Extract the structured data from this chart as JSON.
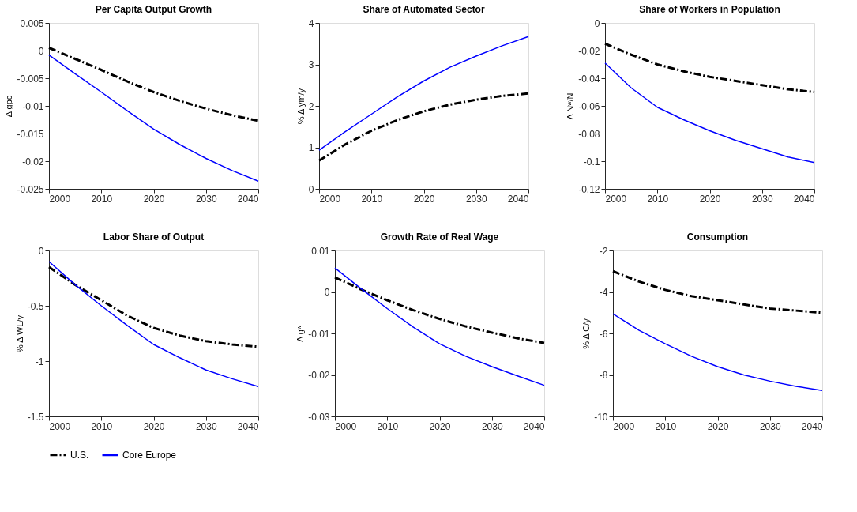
{
  "chart_data": [
    {
      "type": "line",
      "title": "Per Capita Output Growth",
      "ylabel": "Δ gpc",
      "x": [
        2000,
        2005,
        2010,
        2015,
        2020,
        2025,
        2030,
        2035,
        2040
      ],
      "xlim": [
        2000,
        2040
      ],
      "xticks": [
        2000,
        2010,
        2020,
        2030,
        2040
      ],
      "ylim": [
        -0.025,
        0.005
      ],
      "yticks": [
        -0.025,
        -0.02,
        -0.015,
        -0.01,
        -0.005,
        0,
        0.005
      ],
      "grid": false,
      "legend": "bottom",
      "series": [
        {
          "name": "U.S.",
          "color": "#000000",
          "line_style": "dashed",
          "values": [
            0.0005,
            -0.0015,
            -0.0035,
            -0.0056,
            -0.0075,
            -0.0091,
            -0.0105,
            -0.0117,
            -0.0127
          ]
        },
        {
          "name": "Core Europe",
          "color": "#0000ff",
          "line_style": "solid",
          "values": [
            -0.0008,
            -0.0042,
            -0.0075,
            -0.0109,
            -0.0142,
            -0.017,
            -0.0195,
            -0.0217,
            -0.0236
          ]
        }
      ]
    },
    {
      "type": "line",
      "title": "Share of Automated Sector",
      "ylabel": "% Δ ym/y",
      "x": [
        2000,
        2005,
        2010,
        2015,
        2020,
        2025,
        2030,
        2035,
        2040
      ],
      "xlim": [
        2000,
        2040
      ],
      "xticks": [
        2000,
        2010,
        2020,
        2030,
        2040
      ],
      "ylim": [
        0,
        4
      ],
      "yticks": [
        0,
        1,
        2,
        3,
        4
      ],
      "grid": false,
      "series": [
        {
          "name": "U.S.",
          "color": "#000000",
          "line_style": "dashed",
          "values": [
            0.68,
            1.07,
            1.4,
            1.66,
            1.87,
            2.03,
            2.15,
            2.24,
            2.3
          ]
        },
        {
          "name": "Core Europe",
          "color": "#0000ff",
          "line_style": "solid",
          "values": [
            0.93,
            1.38,
            1.8,
            2.22,
            2.6,
            2.93,
            3.2,
            3.45,
            3.67
          ]
        }
      ]
    },
    {
      "type": "line",
      "title": "Share of Workers in Population",
      "ylabel": "Δ Nʷ/N",
      "x": [
        2000,
        2005,
        2010,
        2015,
        2020,
        2025,
        2030,
        2035,
        2040
      ],
      "xlim": [
        2000,
        2040
      ],
      "xticks": [
        2000,
        2010,
        2020,
        2030,
        2040
      ],
      "ylim": [
        -0.12,
        0
      ],
      "yticks": [
        -0.12,
        -0.1,
        -0.08,
        -0.06,
        -0.04,
        -0.02,
        0
      ],
      "grid": false,
      "series": [
        {
          "name": "U.S.",
          "color": "#000000",
          "line_style": "dashed",
          "values": [
            -0.015,
            -0.023,
            -0.03,
            -0.035,
            -0.039,
            -0.042,
            -0.045,
            -0.048,
            -0.05
          ]
        },
        {
          "name": "Core Europe",
          "color": "#0000ff",
          "line_style": "solid",
          "values": [
            -0.029,
            -0.047,
            -0.061,
            -0.07,
            -0.078,
            -0.085,
            -0.091,
            -0.097,
            -0.101
          ]
        }
      ]
    },
    {
      "type": "line",
      "title": "Labor Share of Output",
      "ylabel": "% Δ WL/y",
      "x": [
        2000,
        2005,
        2010,
        2015,
        2020,
        2025,
        2030,
        2035,
        2040
      ],
      "xlim": [
        2000,
        2040
      ],
      "xticks": [
        2000,
        2010,
        2020,
        2030,
        2040
      ],
      "ylim": [
        -1.5,
        0
      ],
      "yticks": [
        -1.5,
        -1,
        -0.5,
        0
      ],
      "grid": false,
      "series": [
        {
          "name": "U.S.",
          "color": "#000000",
          "line_style": "dashed",
          "values": [
            -0.15,
            -0.31,
            -0.45,
            -0.59,
            -0.7,
            -0.77,
            -0.82,
            -0.85,
            -0.87
          ]
        },
        {
          "name": "Core Europe",
          "color": "#0000ff",
          "line_style": "solid",
          "values": [
            -0.1,
            -0.31,
            -0.5,
            -0.68,
            -0.85,
            -0.97,
            -1.08,
            -1.16,
            -1.23
          ]
        }
      ]
    },
    {
      "type": "line",
      "title": "Growth Rate of Real Wage",
      "ylabel": "Δ gʷ",
      "x": [
        2000,
        2005,
        2010,
        2015,
        2020,
        2025,
        2030,
        2035,
        2040
      ],
      "xlim": [
        2000,
        2040
      ],
      "xticks": [
        2000,
        2010,
        2020,
        2030,
        2040
      ],
      "ylim": [
        -0.03,
        0.01
      ],
      "yticks": [
        -0.03,
        -0.02,
        -0.01,
        0,
        0.01
      ],
      "grid": false,
      "series": [
        {
          "name": "U.S.",
          "color": "#000000",
          "line_style": "dashed",
          "values": [
            0.0035,
            0.0006,
            -0.002,
            -0.0044,
            -0.0065,
            -0.0083,
            -0.0098,
            -0.0112,
            -0.0123
          ]
        },
        {
          "name": "Core Europe",
          "color": "#0000ff",
          "line_style": "solid",
          "values": [
            0.0058,
            0.0008,
            -0.004,
            -0.0085,
            -0.0125,
            -0.0155,
            -0.018,
            -0.0203,
            -0.0225
          ]
        }
      ]
    },
    {
      "type": "line",
      "title": "Consumption",
      "ylabel": "% Δ C/y",
      "x": [
        2000,
        2005,
        2010,
        2015,
        2020,
        2025,
        2030,
        2035,
        2040
      ],
      "xlim": [
        2000,
        2040
      ],
      "xticks": [
        2000,
        2010,
        2020,
        2030,
        2040
      ],
      "ylim": [
        -10,
        -2
      ],
      "yticks": [
        -10,
        -8,
        -6,
        -4,
        -2
      ],
      "grid": false,
      "series": [
        {
          "name": "U.S.",
          "color": "#000000",
          "line_style": "dashed",
          "values": [
            -3.0,
            -3.5,
            -3.9,
            -4.2,
            -4.4,
            -4.6,
            -4.8,
            -4.9,
            -5.0
          ]
        },
        {
          "name": "Core Europe",
          "color": "#0000ff",
          "line_style": "solid",
          "values": [
            -5.05,
            -5.85,
            -6.5,
            -7.1,
            -7.6,
            -8.0,
            -8.3,
            -8.55,
            -8.75
          ]
        }
      ]
    }
  ]
}
